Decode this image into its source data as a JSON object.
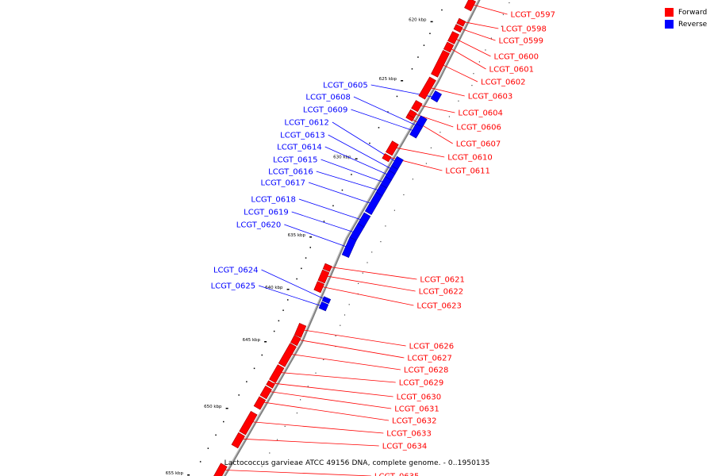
{
  "caption": "Lactococcus garvieae ATCC 49156 DNA, complete genome. - 0..1950135",
  "legend": [
    {
      "label": "Forward",
      "color": "#ff0000"
    },
    {
      "label": "Reverse",
      "color": "#0000ff"
    }
  ],
  "colors": {
    "forward": "#ff0000",
    "forward_dark": "#a00000",
    "reverse": "#0000ff",
    "reverse_dark": "#0000a0",
    "backbone": "#808080"
  },
  "ticks": [
    {
      "label": "620 kbp",
      "kbp": 620
    },
    {
      "label": "625 kbp",
      "kbp": 625
    },
    {
      "label": "630 kbp",
      "kbp": 630
    },
    {
      "label": "635 kbp",
      "kbp": 635
    },
    {
      "label": "640 kbp",
      "kbp": 640
    },
    {
      "label": "645 kbp",
      "kbp": 645
    },
    {
      "label": "650 kbp",
      "kbp": 650
    },
    {
      "label": "655 kbp",
      "kbp": 655
    }
  ],
  "genes": [
    {
      "name": "LCGT_0597",
      "strand": "forward",
      "start_kbp": 618.3,
      "end_kbp": 619.1
    },
    {
      "name": "LCGT_0598",
      "strand": "forward",
      "start_kbp": 620.0,
      "end_kbp": 620.4
    },
    {
      "name": "LCGT_0599",
      "strand": "forward",
      "start_kbp": 620.5,
      "end_kbp": 620.9
    },
    {
      "name": "LCGT_0600",
      "strand": "forward",
      "start_kbp": 621.1,
      "end_kbp": 621.9
    },
    {
      "name": "LCGT_0601",
      "strand": "forward",
      "start_kbp": 622.0,
      "end_kbp": 622.6
    },
    {
      "name": "LCGT_0602",
      "strand": "forward",
      "start_kbp": 622.7,
      "end_kbp": 624.7
    },
    {
      "name": "LCGT_0603",
      "strand": "forward",
      "start_kbp": 625.0,
      "end_kbp": 626.2
    },
    {
      "name": "LCGT_0604",
      "strand": "forward",
      "start_kbp": 626.5,
      "end_kbp": 627.0
    },
    {
      "name": "LCGT_0605",
      "strand": "reverse",
      "start_kbp": 625.5,
      "end_kbp": 626.0
    },
    {
      "name": "LCGT_0606",
      "strand": "forward",
      "start_kbp": 627.1,
      "end_kbp": 627.4
    },
    {
      "name": "LCGT_0607",
      "strand": "forward",
      "start_kbp": 627.4,
      "end_kbp": 627.6
    },
    {
      "name": "LCGT_0608",
      "strand": "reverse",
      "start_kbp": 627.1,
      "end_kbp": 628.2
    },
    {
      "name": "LCGT_0609",
      "strand": "reverse",
      "start_kbp": 627.6,
      "end_kbp": 628.3
    },
    {
      "name": "LCGT_0610",
      "strand": "forward",
      "start_kbp": 629.1,
      "end_kbp": 629.8
    },
    {
      "name": "LCGT_0611",
      "strand": "forward",
      "start_kbp": 629.9,
      "end_kbp": 630.2
    },
    {
      "name": "LCGT_0612",
      "strand": "reverse",
      "start_kbp": 629.7,
      "end_kbp": 630.3
    },
    {
      "name": "LCGT_0613",
      "strand": "reverse",
      "start_kbp": 630.3,
      "end_kbp": 630.6
    },
    {
      "name": "LCGT_0614",
      "strand": "reverse",
      "start_kbp": 630.6,
      "end_kbp": 631.0
    },
    {
      "name": "LCGT_0615",
      "strand": "reverse",
      "start_kbp": 631.0,
      "end_kbp": 631.5
    },
    {
      "name": "LCGT_0616",
      "strand": "reverse",
      "start_kbp": 631.5,
      "end_kbp": 632.0
    },
    {
      "name": "LCGT_0617",
      "strand": "reverse",
      "start_kbp": 632.0,
      "end_kbp": 633.2
    },
    {
      "name": "LCGT_0618",
      "strand": "reverse",
      "start_kbp": 633.3,
      "end_kbp": 634.0
    },
    {
      "name": "LCGT_0619",
      "strand": "reverse",
      "start_kbp": 634.0,
      "end_kbp": 634.9
    },
    {
      "name": "LCGT_0620",
      "strand": "reverse",
      "start_kbp": 634.9,
      "end_kbp": 636.5
    },
    {
      "name": "LCGT_0621",
      "strand": "forward",
      "start_kbp": 637.8,
      "end_kbp": 638.3
    },
    {
      "name": "LCGT_0622",
      "strand": "forward",
      "start_kbp": 638.4,
      "end_kbp": 639.4
    },
    {
      "name": "LCGT_0623",
      "strand": "forward",
      "start_kbp": 639.5,
      "end_kbp": 640.3
    },
    {
      "name": "LCGT_0624",
      "strand": "reverse",
      "start_kbp": 640.5,
      "end_kbp": 640.9
    },
    {
      "name": "LCGT_0625",
      "strand": "reverse",
      "start_kbp": 641.0,
      "end_kbp": 641.6
    },
    {
      "name": "LCGT_0626",
      "strand": "forward",
      "start_kbp": 643.5,
      "end_kbp": 644.6
    },
    {
      "name": "LCGT_0627",
      "strand": "forward",
      "start_kbp": 644.7,
      "end_kbp": 645.3
    },
    {
      "name": "LCGT_0628",
      "strand": "forward",
      "start_kbp": 645.4,
      "end_kbp": 646.9
    },
    {
      "name": "LCGT_0629",
      "strand": "forward",
      "start_kbp": 647.0,
      "end_kbp": 648.1
    },
    {
      "name": "LCGT_0630",
      "strand": "forward",
      "start_kbp": 648.2,
      "end_kbp": 648.5
    },
    {
      "name": "LCGT_0631",
      "strand": "forward",
      "start_kbp": 648.6,
      "end_kbp": 649.3
    },
    {
      "name": "LCGT_0632",
      "strand": "forward",
      "start_kbp": 649.4,
      "end_kbp": 650.1
    },
    {
      "name": "LCGT_0633",
      "strand": "forward",
      "start_kbp": 650.5,
      "end_kbp": 652.0
    },
    {
      "name": "LCGT_0634",
      "strand": "forward",
      "start_kbp": 652.1,
      "end_kbp": 653.0
    },
    {
      "name": "LCGT_0635",
      "strand": "forward",
      "start_kbp": 654.4,
      "end_kbp": 655.5
    }
  ]
}
